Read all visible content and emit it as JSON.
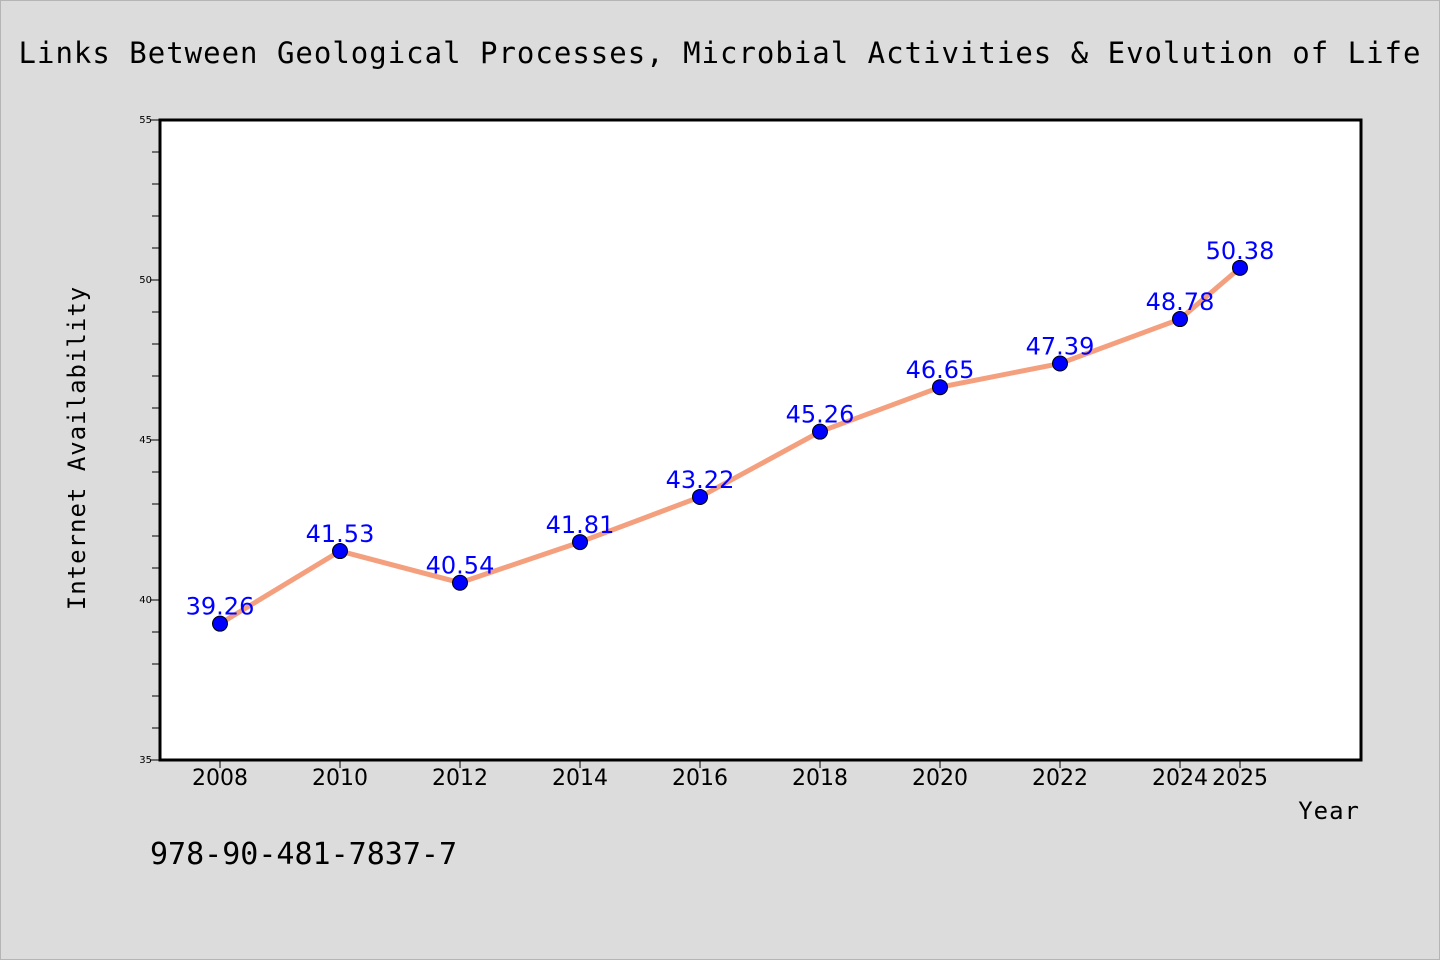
{
  "chart_data": {
    "type": "line",
    "title": "Links Between Geological Processes, Microbial Activities & Evolution of Life",
    "xlabel": "Year",
    "ylabel": "Internet Availability",
    "x": [
      "2008",
      "2010",
      "2012",
      "2014",
      "2016",
      "2018",
      "2020",
      "2022",
      "2024",
      "2025"
    ],
    "series": [
      {
        "values": [
          39.26,
          41.53,
          40.54,
          41.81,
          43.22,
          45.26,
          46.65,
          47.39,
          48.78,
          50.38
        ],
        "data_labels": [
          "39.26",
          "41.53",
          "40.54",
          "41.81",
          "43.22",
          "45.26",
          "46.65",
          "47.39",
          "48.78",
          "50.38"
        ]
      }
    ],
    "ylim": [
      35,
      55
    ],
    "yticks": [
      "35",
      "40",
      "45",
      "50",
      "55"
    ],
    "grid": false,
    "line_color": "#f4a07e",
    "marker_color": "#0000ff",
    "label_color": "#0000ff"
  },
  "footer": {
    "isbn": "978-90-481-7837-7"
  },
  "colors": {
    "background": "#dcdcdc",
    "plot_background": "#ffffff"
  }
}
